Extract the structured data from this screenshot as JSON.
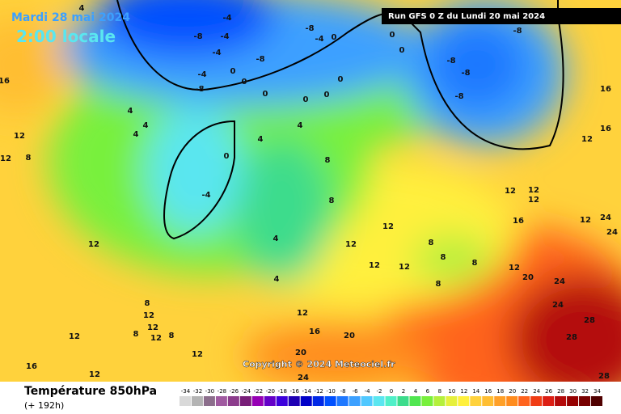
{
  "header": {
    "date": "Mardi 28 mai 2024",
    "time": "2:00 locale",
    "run": "Run GFS 0 Z du Lundi 20 mai 2024"
  },
  "copyright": "Copyright © 2024 Meteociel.fr",
  "footer": {
    "title": "Température 850hPa",
    "lead": "(+ 192h)"
  },
  "legend": {
    "values": [
      -34,
      -32,
      -30,
      -28,
      -26,
      -24,
      -22,
      -20,
      -18,
      -16,
      -14,
      -12,
      -10,
      -8,
      -6,
      -4,
      -2,
      0,
      2,
      4,
      6,
      8,
      10,
      12,
      14,
      16,
      18,
      20,
      22,
      24,
      26,
      28,
      30,
      32,
      34
    ],
    "colors": [
      "#d9d9d9",
      "#b4b4b4",
      "#8c6e8c",
      "#a05aa0",
      "#8c3c8c",
      "#781e78",
      "#9600b4",
      "#6400c8",
      "#3c00dc",
      "#1e00b4",
      "#0000c8",
      "#0028e6",
      "#0050ff",
      "#1e78ff",
      "#3ca0ff",
      "#50c8ff",
      "#5ae6f0",
      "#50f0c8",
      "#3cdc8c",
      "#50e650",
      "#78f03c",
      "#b4f03c",
      "#e6f03c",
      "#fff03c",
      "#ffd23c",
      "#ffbe32",
      "#ffa028",
      "#ff8c1e",
      "#ff641e",
      "#f03c14",
      "#dc1e14",
      "#b40a0a",
      "#960000",
      "#780000",
      "#500000"
    ]
  },
  "map_labels": [
    4,
    -4,
    -8,
    -4,
    -4,
    -8,
    -8,
    -4,
    0,
    0,
    0,
    -8,
    -8,
    -8,
    -8,
    0,
    -4,
    -8,
    0,
    0,
    0,
    0,
    0,
    4,
    4,
    4,
    4,
    4,
    0,
    -4,
    8,
    8,
    12,
    12,
    8,
    8,
    12,
    12,
    8,
    8,
    12,
    20,
    24,
    24,
    28,
    28,
    28,
    16,
    12,
    8,
    12,
    12,
    12,
    12,
    16,
    12,
    24,
    24,
    16,
    16,
    12,
    12,
    8,
    12,
    12,
    8,
    12,
    8,
    12,
    12,
    12,
    16,
    12,
    16,
    20,
    20,
    24,
    4,
    4
  ]
}
